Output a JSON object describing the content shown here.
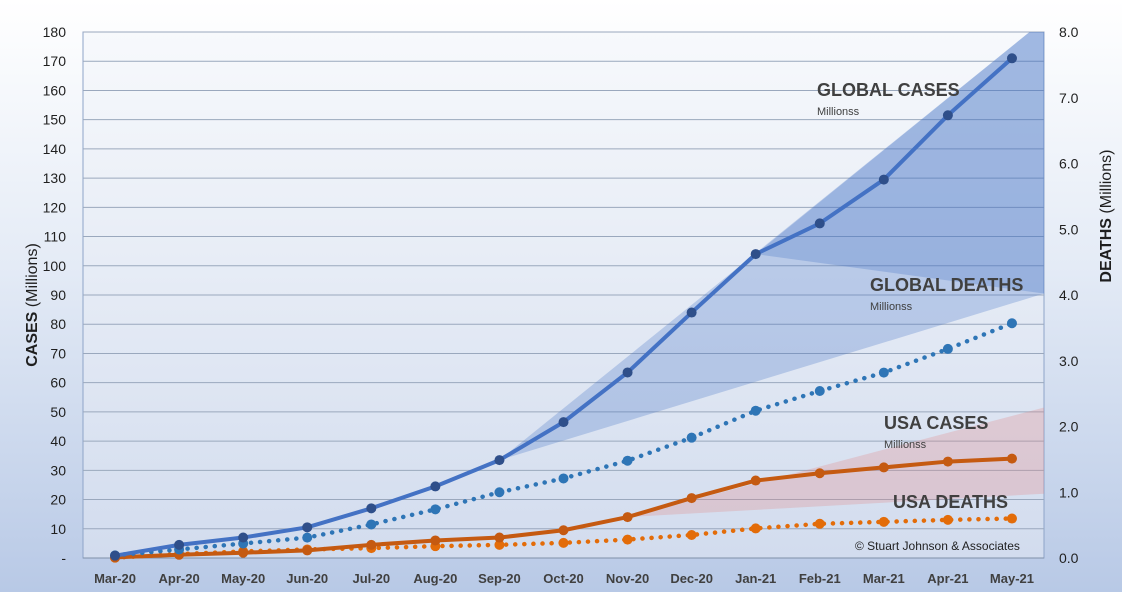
{
  "chart_data": {
    "type": "line",
    "categories": [
      "Mar-20",
      "Apr-20",
      "May-20",
      "Jun-20",
      "Jul-20",
      "Aug-20",
      "Sep-20",
      "Oct-20",
      "Nov-20",
      "Dec-20",
      "Jan-21",
      "Feb-21",
      "Mar-21",
      "Apr-21",
      "May-21"
    ],
    "y_left": {
      "label_bold": "CASES",
      "label_rest": " (Millions)",
      "range": [
        0,
        180
      ],
      "ticks": [
        0,
        10,
        20,
        30,
        40,
        50,
        60,
        70,
        80,
        90,
        100,
        110,
        120,
        130,
        140,
        150,
        160,
        170,
        180
      ],
      "tick_labels": [
        "-",
        "10",
        "20",
        "30",
        "40",
        "50",
        "60",
        "70",
        "80",
        "90",
        "100",
        "110",
        "120",
        "130",
        "140",
        "150",
        "160",
        "170",
        "180"
      ]
    },
    "y_right": {
      "label_bold": "DEATHS",
      "label_rest": " (Millions)",
      "range": [
        0,
        8
      ],
      "ticks": [
        0,
        1,
        2,
        3,
        4,
        5,
        6,
        7,
        8
      ],
      "tick_labels": [
        "0.0",
        "1.0",
        "2.0",
        "3.0",
        "4.0",
        "5.0",
        "6.0",
        "7.0",
        "8.0"
      ]
    },
    "grid": true,
    "series": [
      {
        "name": "GLOBAL CASES",
        "subtitle": "Millionss",
        "axis": "left",
        "style": "solid",
        "color": "#4472C4",
        "values": [
          0.8,
          4.5,
          7.0,
          10.5,
          17.0,
          24.5,
          33.5,
          46.5,
          63.5,
          84.0,
          104.0,
          114.5,
          129.5,
          151.5,
          171.0
        ]
      },
      {
        "name": "GLOBAL DEATHS",
        "subtitle": "Millionss",
        "axis": "right",
        "style": "dotted",
        "color": "#2E75B6",
        "values": [
          0.04,
          0.13,
          0.22,
          0.31,
          0.51,
          0.74,
          1.0,
          1.21,
          1.48,
          1.83,
          2.24,
          2.54,
          2.82,
          3.18,
          3.57
        ]
      },
      {
        "name": "USA CASES",
        "subtitle": "Millionss",
        "axis": "left",
        "style": "solid",
        "color": "#C55A11",
        "values": [
          0.2,
          1.1,
          1.8,
          2.6,
          4.5,
          6.0,
          7.0,
          9.5,
          14.0,
          20.5,
          26.5,
          29.0,
          31.0,
          33.0,
          34.0
        ]
      },
      {
        "name": "USA DEATHS",
        "subtitle": "",
        "axis": "right",
        "style": "dotted",
        "color": "#E36C09",
        "values": [
          0.005,
          0.06,
          0.1,
          0.13,
          0.15,
          0.18,
          0.2,
          0.23,
          0.28,
          0.35,
          0.45,
          0.52,
          0.55,
          0.58,
          0.6
        ]
      }
    ],
    "projection_bands": [
      {
        "series": "GLOBAL CASES",
        "color": "#4472C4",
        "axis": "left",
        "from_index": 6,
        "from_value": 33.5,
        "lower_end": 90.5,
        "upper_end": 184
      },
      {
        "series": "GLOBAL CASES",
        "color": "#4472C4",
        "axis": "left",
        "from_index": 10,
        "from_value": 104.0,
        "lower_end": 90.5,
        "upper_end": 184
      },
      {
        "series": "USA CASES",
        "color": "#E48585",
        "axis": "left",
        "from_index": 8,
        "from_value": 14.0,
        "lower_end": 22.0,
        "upper_end": 51.5
      }
    ],
    "copyright": "© Stuart Johnson & Associates"
  }
}
